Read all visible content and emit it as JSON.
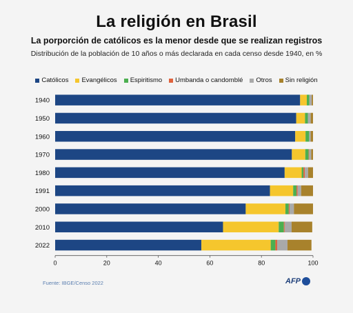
{
  "title": "La religión en Brasil",
  "subtitle": "La porporción de católicos es la menor desde que se realizan registros",
  "caption": "Distribución de la población de 10 años o más declarada en cada censo desde 1940, en %",
  "source": "Fuente: IBGE/Censo 2022",
  "logo_text": "AFP",
  "chart_data": {
    "type": "bar",
    "orientation": "horizontal",
    "stacked": true,
    "categories": [
      "1940",
      "1950",
      "1960",
      "1970",
      "1980",
      "1991",
      "2000",
      "2010",
      "2022"
    ],
    "xlim": [
      0,
      100
    ],
    "xticks": [
      0,
      20,
      40,
      60,
      80,
      100
    ],
    "grid": false,
    "legend_position": "top",
    "series": [
      {
        "name": "Católicos",
        "color": "#1d4684",
        "values": [
          95.0,
          93.5,
          93.1,
          91.8,
          89.0,
          83.3,
          73.9,
          65.1,
          56.7
        ]
      },
      {
        "name": "Evangélicos",
        "color": "#f5c62d",
        "values": [
          2.6,
          3.4,
          4.0,
          5.2,
          6.6,
          9.0,
          15.4,
          21.6,
          26.9
        ]
      },
      {
        "name": "Espiritismo",
        "color": "#4caf50",
        "values": [
          1.0,
          1.1,
          1.4,
          1.3,
          0.7,
          1.3,
          1.3,
          2.0,
          1.8
        ]
      },
      {
        "name": "Umbanda o candomblé",
        "color": "#e0623c",
        "values": [
          0.0,
          0.0,
          0.0,
          0.2,
          0.5,
          0.4,
          0.3,
          0.3,
          0.7
        ]
      },
      {
        "name": "Otros",
        "color": "#a9a9a9",
        "values": [
          0.9,
          1.1,
          0.6,
          0.8,
          1.3,
          1.4,
          1.7,
          2.7,
          4.0
        ]
      },
      {
        "name": "Sin religión",
        "color": "#a8822c",
        "values": [
          0.5,
          0.9,
          0.9,
          0.7,
          1.9,
          4.6,
          7.4,
          8.0,
          9.3
        ]
      }
    ]
  }
}
